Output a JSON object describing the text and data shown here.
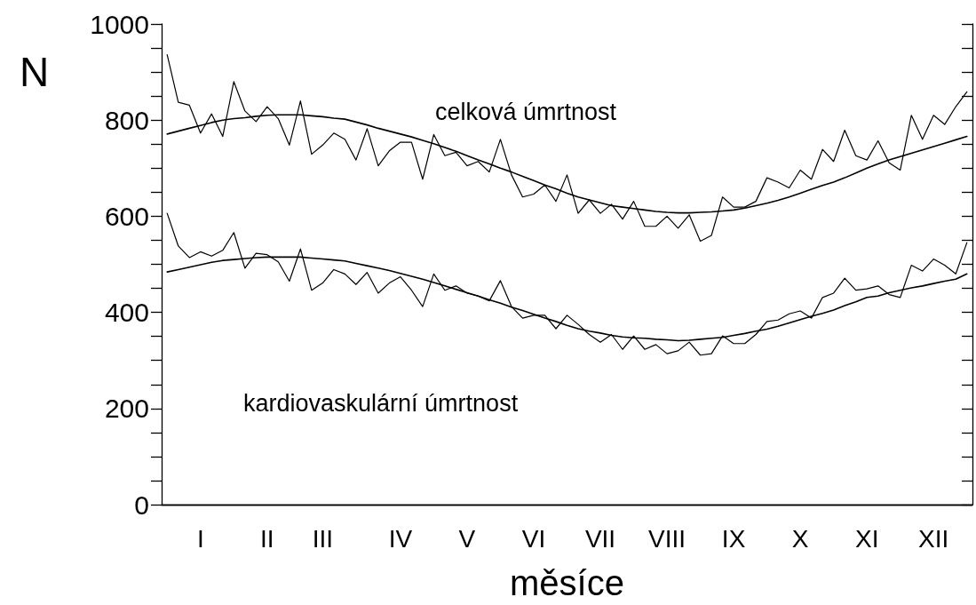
{
  "chart_data": {
    "type": "line",
    "xlabel": "měsíce",
    "ylabel": "N",
    "marker": "none",
    "line_style": "solid",
    "grid": false,
    "categories": [
      null,
      null,
      null,
      "I",
      null,
      null,
      null,
      null,
      null,
      "II",
      null,
      null,
      null,
      null,
      "III",
      null,
      null,
      null,
      null,
      null,
      null,
      "IV",
      null,
      null,
      null,
      null,
      null,
      "V",
      null,
      null,
      null,
      null,
      null,
      "VI",
      null,
      null,
      null,
      null,
      null,
      "VII",
      null,
      null,
      null,
      null,
      null,
      "VIII",
      null,
      null,
      null,
      null,
      null,
      "IX",
      null,
      null,
      null,
      null,
      null,
      "X",
      null,
      null,
      null,
      null,
      null,
      "XI",
      null,
      null,
      null,
      null,
      null,
      "XII",
      null,
      null,
      null
    ],
    "ylim": [
      0,
      1000
    ],
    "yticks": [
      0,
      {
        "value": 50,
        "label": null
      },
      {
        "value": 100,
        "label": null
      },
      {
        "value": 150,
        "label": null
      },
      200,
      {
        "value": 250,
        "label": null
      },
      {
        "value": 300,
        "label": null
      },
      {
        "value": 350,
        "label": null
      },
      400,
      {
        "value": 450,
        "label": null
      },
      {
        "value": 500,
        "label": null
      },
      {
        "value": 550,
        "label": null
      },
      600,
      {
        "value": 650,
        "label": null
      },
      {
        "value": 700,
        "label": null
      },
      {
        "value": 750,
        "label": null
      },
      800,
      {
        "value": 850,
        "label": null
      },
      {
        "value": 900,
        "label": null
      },
      {
        "value": 950,
        "label": null
      },
      1000
    ],
    "series": [
      {
        "name": "celková úmrtnost",
        "color": "#000000",
        "values": [
          936,
          837,
          831,
          773,
          813,
          766,
          880,
          819,
          797,
          828,
          803,
          748,
          840,
          729,
          748,
          773,
          760,
          717,
          782,
          705,
          736,
          754,
          754,
          677,
          770,
          726,
          733,
          705,
          714,
          692,
          760,
          686,
          640,
          646,
          665,
          631,
          686,
          606,
          634,
          606,
          625,
          594,
          631,
          579,
          579,
          600,
          575,
          603,
          548,
          560,
          640,
          619,
          619,
          631,
          680,
          671,
          659,
          696,
          677,
          739,
          714,
          779,
          726,
          717,
          757,
          711,
          696,
          810,
          760,
          810,
          791,
          828,
          859
        ]
      },
      {
        "color": "#000000",
        "values": [
          771,
          777,
          783,
          789,
          795,
          800,
          803,
          805,
          808,
          810,
          811,
          811,
          811,
          809,
          807,
          804,
          802,
          796,
          790,
          783,
          777,
          771,
          765,
          758,
          751,
          743,
          735,
          726,
          717,
          709,
          700,
          692,
          683,
          674,
          665,
          657,
          648,
          640,
          634,
          628,
          622,
          619,
          616,
          613,
          610,
          608,
          607,
          607,
          608,
          609,
          611,
          613,
          617,
          622,
          627,
          633,
          640,
          648,
          656,
          664,
          671,
          680,
          690,
          700,
          709,
          717,
          724,
          731,
          738,
          745,
          752,
          759,
          766
        ]
      },
      {
        "name": "kardiovaskulární úmrtnost",
        "color": "#000000",
        "values": [
          606,
          538,
          514,
          526,
          517,
          529,
          566,
          492,
          523,
          520,
          505,
          465,
          532,
          446,
          461,
          489,
          480,
          458,
          483,
          440,
          461,
          474,
          446,
          412,
          480,
          446,
          455,
          440,
          434,
          424,
          466,
          412,
          388,
          394,
          394,
          366,
          394,
          375,
          354,
          338,
          354,
          323,
          351,
          323,
          333,
          314,
          320,
          338,
          311,
          314,
          351,
          335,
          335,
          354,
          381,
          384,
          397,
          403,
          388,
          431,
          440,
          471,
          446,
          449,
          455,
          437,
          431,
          498,
          486,
          511,
          498,
          480,
          545
        ]
      },
      {
        "color": "#000000",
        "values": [
          484,
          489,
          494,
          499,
          504,
          508,
          510,
          512,
          514,
          515,
          515,
          515,
          515,
          513,
          511,
          509,
          507,
          502,
          497,
          492,
          487,
          481,
          475,
          469,
          462,
          455,
          448,
          441,
          434,
          426,
          419,
          411,
          404,
          396,
          388,
          381,
          373,
          366,
          361,
          357,
          352,
          349,
          347,
          346,
          344,
          343,
          341,
          342,
          344,
          346,
          348,
          352,
          356,
          361,
          365,
          371,
          378,
          385,
          392,
          398,
          405,
          414,
          422,
          431,
          434,
          441,
          446,
          451,
          455,
          460,
          465,
          469,
          480
        ]
      }
    ]
  }
}
